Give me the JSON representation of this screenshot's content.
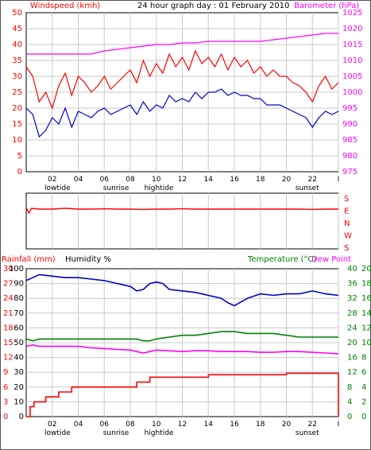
{
  "header": {
    "left_title": "Windspeed (kmh)",
    "center_title": "24 hour graph day : 01 February 2010",
    "right_title": "Barometer (hPa)"
  },
  "lower_header": {
    "rain_title": "Rainfall (mm)",
    "humidity_title": "Humidity %",
    "temp_title": "Temperature (°C)",
    "dew_title": "Dew Point"
  },
  "x_ticks": [
    "02",
    "04",
    "06",
    "08",
    "10",
    "12",
    "14",
    "16",
    "18",
    "20",
    "22",
    "I"
  ],
  "events": [
    {
      "label": "lowtide",
      "at": 2.4
    },
    {
      "label": "sunrise",
      "at": 6.9
    },
    {
      "label": "hightide",
      "at": 10.2
    },
    {
      "label": "sunset",
      "at": 21.6
    }
  ],
  "compass": [
    "S",
    "E",
    "N",
    "W",
    "S"
  ],
  "colors": {
    "wind": "#ff0000",
    "baro": "#ff00ff",
    "gust": "#ff0000",
    "avg": "#0000cc",
    "humidity": "#0000cc",
    "temp": "#008000",
    "dew": "#ff00ff",
    "rain": "#ff0000",
    "grid": "#c8c8c8"
  },
  "chart_data": [
    {
      "type": "line",
      "title": "24 hour graph day : 01 February 2010",
      "ylabel": "Windspeed (kmh)",
      "y2label": "Barometer (hPa)",
      "xlim": [
        0,
        24
      ],
      "ylim": [
        0,
        50
      ],
      "y_ticks": [
        0,
        5,
        10,
        15,
        20,
        25,
        30,
        35,
        40,
        45,
        50
      ],
      "y2lim": [
        975,
        1025
      ],
      "y2_ticks": [
        975,
        980,
        985,
        990,
        995,
        1000,
        1005,
        1010,
        1015,
        1020,
        1025
      ],
      "grid": true,
      "series": [
        {
          "axis": "left",
          "color": "#ff0000",
          "x": [
            0,
            0.5,
            1,
            1.5,
            2,
            2.5,
            3,
            3.5,
            4,
            4.5,
            5,
            5.5,
            6,
            6.5,
            7,
            7.5,
            8,
            8.5,
            9,
            9.5,
            10,
            10.5,
            11,
            11.5,
            12,
            12.5,
            13,
            13.5,
            14,
            14.5,
            15,
            15.5,
            16,
            16.5,
            17,
            17.5,
            18,
            18.5,
            19,
            19.5,
            20,
            20.5,
            21,
            21.5,
            22,
            22.5,
            23,
            23.5,
            24
          ],
          "values": [
            33,
            30,
            22,
            25,
            20,
            27,
            31,
            24,
            30,
            28,
            25,
            27,
            30,
            26,
            28,
            30,
            32,
            28,
            35,
            30,
            34,
            31,
            37,
            33,
            36,
            32,
            38,
            34,
            36,
            33,
            37,
            32,
            36,
            33,
            35,
            31,
            33,
            30,
            32,
            30,
            30,
            28,
            27,
            25,
            22,
            27,
            30,
            26,
            28
          ]
        },
        {
          "axis": "left",
          "color": "#0000cc",
          "x": [
            0,
            0.5,
            1,
            1.5,
            2,
            2.5,
            3,
            3.5,
            4,
            4.5,
            5,
            5.5,
            6,
            6.5,
            7,
            7.5,
            8,
            8.5,
            9,
            9.5,
            10,
            10.5,
            11,
            11.5,
            12,
            12.5,
            13,
            13.5,
            14,
            14.5,
            15,
            15.5,
            16,
            16.5,
            17,
            17.5,
            18,
            18.5,
            19,
            19.5,
            20,
            20.5,
            21,
            21.5,
            22,
            22.5,
            23,
            23.5,
            24
          ],
          "values": [
            20,
            18,
            11,
            13,
            17,
            15,
            20,
            14,
            19,
            18,
            17,
            19,
            20,
            18,
            19,
            20,
            21,
            18,
            22,
            19,
            21,
            20,
            24,
            22,
            23,
            22,
            25,
            23,
            25,
            25,
            26,
            24,
            25,
            24,
            24,
            23,
            23,
            21,
            21,
            21,
            20,
            19,
            18,
            17,
            14,
            17,
            19,
            18,
            19
          ]
        },
        {
          "axis": "right",
          "color": "#ff00ff",
          "x": [
            0,
            1,
            2,
            3,
            4,
            5,
            6,
            7,
            8,
            9,
            10,
            11,
            12,
            13,
            14,
            15,
            16,
            17,
            18,
            19,
            20,
            21,
            22,
            23,
            24
          ],
          "values": [
            1012,
            1012,
            1012,
            1012,
            1012,
            1012,
            1013,
            1013.5,
            1014,
            1014.5,
            1015,
            1015,
            1015.5,
            1015.5,
            1016,
            1016,
            1016,
            1016,
            1016,
            1016.5,
            1017,
            1017.5,
            1018,
            1018.5,
            1018.5
          ]
        }
      ]
    },
    {
      "type": "line",
      "title": "Wind direction",
      "xlim": [
        0,
        24
      ],
      "series": [
        {
          "color": "#ff0000",
          "x": [
            0,
            0.2,
            0.4,
            1,
            2,
            3,
            4,
            5,
            6,
            7,
            8,
            9,
            10,
            11,
            12,
            13,
            14,
            15,
            16,
            17,
            18,
            19,
            20,
            21,
            22,
            23,
            24
          ],
          "values": [
            0.2,
            0.55,
            0.25,
            0.3,
            0.3,
            0.25,
            0.3,
            0.3,
            0.28,
            0.3,
            0.3,
            0.32,
            0.3,
            0.3,
            0.28,
            0.3,
            0.3,
            0.3,
            0.3,
            0.3,
            0.3,
            0.3,
            0.3,
            0.3,
            0.32,
            0.3,
            0.3
          ]
        }
      ]
    },
    {
      "type": "line",
      "ylabel": "Rainfall (mm)",
      "y_humidity_label": "Humidity %",
      "y2label": "Temperature (°C)",
      "y2_dew_label": "Dew Point",
      "xlim": [
        0,
        24
      ],
      "rain_ticks": [
        0,
        3,
        6,
        9,
        12,
        15,
        18,
        21,
        24,
        27,
        30
      ],
      "humidity_ticks": [
        0,
        10,
        20,
        30,
        40,
        50,
        60,
        70,
        80,
        90,
        100
      ],
      "temp_ticks": [
        0,
        4,
        8,
        12,
        16,
        20,
        24,
        28,
        32,
        36,
        40
      ],
      "dew_ticks": [
        0,
        2,
        4,
        6,
        8,
        10,
        12,
        14,
        16,
        18,
        20
      ],
      "grid": true,
      "series": [
        {
          "name": "Humidity %",
          "axis": "humidity",
          "color": "#0000cc",
          "x": [
            0,
            0.5,
            1,
            2,
            3,
            4,
            5,
            6,
            7,
            8,
            8.5,
            9,
            9.5,
            10,
            10.5,
            11,
            12,
            13,
            14,
            15,
            15.5,
            16,
            17,
            18,
            19,
            20,
            21,
            22,
            23,
            24
          ],
          "values": [
            92,
            94,
            96,
            95,
            94,
            94,
            93,
            92,
            90,
            88,
            85,
            86,
            90,
            91,
            90,
            86,
            85,
            84,
            82,
            80,
            77,
            75,
            80,
            83,
            82,
            83,
            83,
            85,
            83,
            82
          ]
        },
        {
          "name": "Temperature (°C)",
          "axis": "temp",
          "color": "#008000",
          "x": [
            0,
            0.5,
            1,
            2,
            3,
            4,
            5,
            6,
            7,
            8,
            8.5,
            9,
            9.5,
            10,
            11,
            12,
            13,
            14,
            15,
            16,
            17,
            18,
            19,
            20,
            21,
            22,
            23,
            24
          ],
          "values": [
            21,
            20.5,
            21,
            21,
            21,
            21,
            21,
            21,
            21,
            21,
            21,
            20.5,
            20.5,
            21,
            21.5,
            22,
            22,
            22.5,
            23,
            23,
            22.5,
            22.5,
            22.5,
            22,
            21.5,
            21.5,
            21.5,
            21.5
          ]
        },
        {
          "name": "Dew Point",
          "axis": "dew",
          "color": "#ff00ff",
          "x": [
            0,
            0.5,
            1,
            2,
            3,
            4,
            5,
            6,
            7,
            8,
            8.5,
            9,
            9.5,
            10,
            11,
            12,
            13,
            14,
            15,
            16,
            17,
            18,
            19,
            20,
            21,
            22,
            23,
            24
          ],
          "values": [
            9.5,
            9.7,
            9.5,
            9.5,
            9.5,
            9.5,
            9.3,
            9.2,
            9.1,
            9.0,
            8.8,
            8.6,
            8.8,
            9.0,
            8.9,
            8.8,
            8.9,
            8.9,
            8.8,
            8.8,
            8.8,
            8.7,
            8.7,
            8.8,
            8.8,
            8.7,
            8.6,
            8.5
          ]
        },
        {
          "name": "Rainfall (mm)",
          "axis": "rain",
          "color": "#ff0000",
          "x": [
            0,
            0.3,
            0.6,
            1,
            1.5,
            2,
            2.5,
            3,
            3.5,
            4,
            5,
            6,
            7,
            8,
            8.5,
            9,
            9.5,
            10,
            11,
            12,
            13,
            14,
            15,
            16,
            17,
            18,
            19,
            20,
            21,
            22,
            23,
            23.9,
            24
          ],
          "values": [
            0,
            2,
            3,
            3,
            4,
            4,
            5,
            5,
            6,
            6,
            6,
            6,
            6,
            6,
            7,
            7,
            8,
            8,
            8,
            8,
            8,
            8.5,
            8.5,
            8.5,
            8.5,
            8.5,
            8.5,
            8.8,
            8.8,
            8.8,
            8.8,
            8.8,
            0
          ]
        }
      ]
    }
  ]
}
